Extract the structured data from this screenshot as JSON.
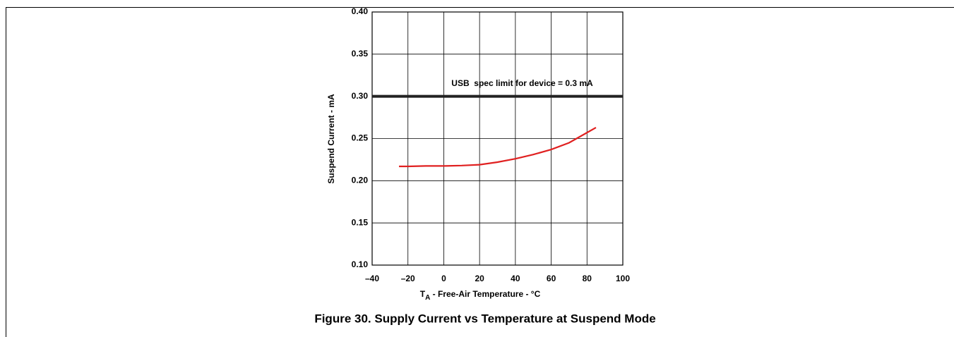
{
  "chart_data": {
    "type": "line",
    "title": "Figure 30. Supply Current vs Temperature at Suspend Mode",
    "xlabel": {
      "main": "T",
      "sub": "A",
      "rest": " - Free-Air Temperature - °C"
    },
    "ylabel": "Suspend Current - mA",
    "xlim": [
      -40,
      100
    ],
    "xticks": [
      {
        "value": -40,
        "label": "–40"
      },
      {
        "value": -20,
        "label": "–20"
      },
      0,
      20,
      40,
      60,
      80,
      100
    ],
    "ylim": [
      0.1,
      0.4
    ],
    "yticks": [
      {
        "value": 0.1,
        "label": "0.10"
      },
      0.15,
      {
        "value": 0.2,
        "label": "0.20"
      },
      0.25,
      {
        "value": 0.3,
        "label": "0.30"
      },
      0.35,
      {
        "value": 0.4,
        "label": "0.40"
      }
    ],
    "grid": true,
    "series": [
      {
        "name": "Suspend Current",
        "color": "#e02020",
        "x": [
          -25,
          -20,
          -10,
          0,
          10,
          20,
          30,
          40,
          50,
          60,
          70,
          80,
          85
        ],
        "values": [
          0.217,
          0.217,
          0.2175,
          0.2175,
          0.218,
          0.219,
          0.222,
          0.226,
          0.231,
          0.237,
          0.245,
          0.257,
          0.263
        ]
      }
    ],
    "reference_line": {
      "value": 0.3,
      "label": "USB  spec limit for device = 0.3 mA"
    }
  }
}
